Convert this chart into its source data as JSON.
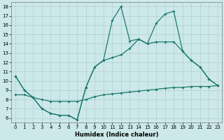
{
  "xlabel": "Humidex (Indice chaleur)",
  "bg_color": "#cce8e8",
  "line_color": "#1e7a6e",
  "grid_color": "#aed0d0",
  "xlim": [
    -0.5,
    23.5
  ],
  "ylim": [
    5.5,
    18.5
  ],
  "x_ticks": [
    0,
    1,
    2,
    3,
    4,
    5,
    6,
    7,
    8,
    9,
    10,
    11,
    12,
    13,
    14,
    15,
    16,
    17,
    18,
    19,
    20,
    21,
    22,
    23
  ],
  "y_ticks": [
    6,
    7,
    8,
    9,
    10,
    11,
    12,
    13,
    14,
    15,
    16,
    17,
    18
  ],
  "series_top_x": [
    0,
    1,
    2,
    3,
    4,
    5,
    6,
    7,
    8,
    9,
    10,
    11,
    12,
    13,
    14,
    15,
    16,
    17,
    18,
    19,
    20,
    21,
    22,
    23
  ],
  "series_top_y": [
    10.5,
    9.0,
    8.2,
    7.0,
    6.5,
    6.3,
    6.3,
    5.8,
    9.3,
    11.5,
    12.2,
    16.5,
    18.0,
    14.3,
    14.5,
    14.0,
    16.2,
    17.2,
    17.5,
    13.2,
    12.2,
    11.5,
    10.2,
    9.5
  ],
  "series_mid_x": [
    0,
    1,
    2,
    3,
    4,
    5,
    6,
    7,
    8,
    9,
    10,
    11,
    12,
    13,
    14,
    15,
    16,
    17,
    18,
    19,
    20,
    21,
    22,
    23
  ],
  "series_mid_y": [
    10.5,
    9.0,
    8.2,
    7.0,
    6.5,
    6.3,
    6.3,
    5.8,
    9.3,
    11.5,
    12.2,
    12.5,
    12.8,
    13.5,
    14.5,
    14.0,
    14.2,
    14.2,
    14.2,
    13.2,
    12.2,
    11.5,
    10.2,
    9.5
  ],
  "series_bot_x": [
    0,
    1,
    2,
    3,
    4,
    5,
    6,
    7,
    8,
    9,
    10,
    11,
    12,
    13,
    14,
    15,
    16,
    17,
    18,
    19,
    20,
    21,
    22,
    23
  ],
  "series_bot_y": [
    8.5,
    8.5,
    8.2,
    8.0,
    7.8,
    7.8,
    7.8,
    7.8,
    8.0,
    8.3,
    8.5,
    8.6,
    8.7,
    8.8,
    8.9,
    9.0,
    9.1,
    9.2,
    9.3,
    9.3,
    9.4,
    9.4,
    9.4,
    9.5
  ]
}
